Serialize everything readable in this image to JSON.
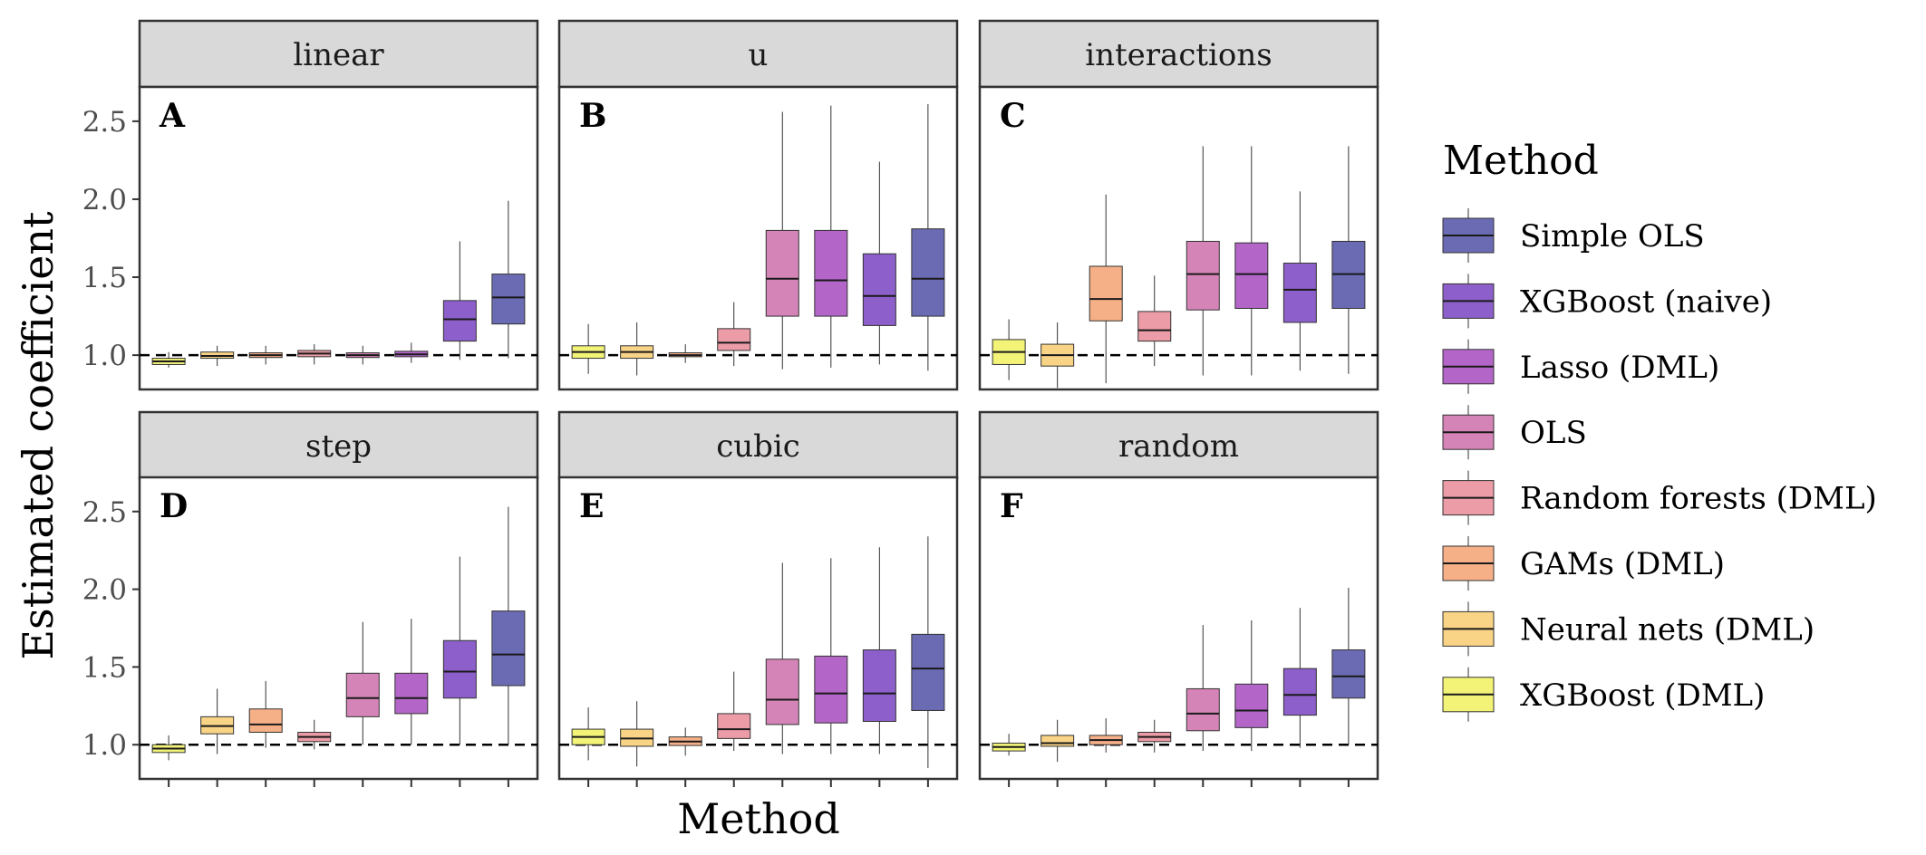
{
  "chart_data": {
    "type": "boxplot",
    "xlabel": "Method",
    "ylabel": "Estimated coefficient",
    "ylim": [
      0.78,
      2.72
    ],
    "yticks": [
      1.0,
      1.5,
      2.0,
      2.5
    ],
    "reference_line": 1.0,
    "legend": {
      "title": "Method",
      "position": "right",
      "entries": [
        {
          "name": "Simple OLS",
          "color": "#6b6bb4"
        },
        {
          "name": "XGBoost (naive)",
          "color": "#8c5fca"
        },
        {
          "name": "Lasso (DML)",
          "color": "#b366c8"
        },
        {
          "name": "OLS",
          "color": "#d584b7"
        },
        {
          "name": "Random forests (DML)",
          "color": "#ec9ca6"
        },
        {
          "name": "GAMs (DML)",
          "color": "#f6b088"
        },
        {
          "name": "Neural nets (DML)",
          "color": "#fad486"
        },
        {
          "name": "XGBoost (DML)",
          "color": "#f3f378"
        }
      ]
    },
    "x_order": [
      "XGBoost (DML)",
      "Neural nets (DML)",
      "GAMs (DML)",
      "Random forests (DML)",
      "OLS",
      "Lasso (DML)",
      "XGBoost (naive)",
      "Simple OLS"
    ],
    "panels": [
      {
        "strip": "linear",
        "letter": "A",
        "boxes": [
          {
            "method": "XGBoost (DML)",
            "min": 0.92,
            "q1": 0.94,
            "median": 0.96,
            "q3": 0.98,
            "max": 1.02
          },
          {
            "method": "Neural nets (DML)",
            "min": 0.93,
            "q1": 0.98,
            "median": 0.995,
            "q3": 1.02,
            "max": 1.06
          },
          {
            "method": "GAMs (DML)",
            "min": 0.94,
            "q1": 0.985,
            "median": 1.0,
            "q3": 1.015,
            "max": 1.06
          },
          {
            "method": "Random forests (DML)",
            "min": 0.94,
            "q1": 0.99,
            "median": 1.01,
            "q3": 1.03,
            "max": 1.07
          },
          {
            "method": "OLS",
            "min": 0.94,
            "q1": 0.985,
            "median": 1.0,
            "q3": 1.015,
            "max": 1.06
          },
          {
            "method": "Lasso (DML)",
            "min": 0.95,
            "q1": 0.99,
            "median": 1.005,
            "q3": 1.025,
            "max": 1.08
          },
          {
            "method": "XGBoost (naive)",
            "min": 0.97,
            "q1": 1.09,
            "median": 1.23,
            "q3": 1.35,
            "max": 1.73
          },
          {
            "method": "Simple OLS",
            "min": 0.98,
            "q1": 1.2,
            "median": 1.37,
            "q3": 1.52,
            "max": 1.99
          }
        ]
      },
      {
        "strip": "u",
        "letter": "B",
        "boxes": [
          {
            "method": "XGBoost (DML)",
            "min": 0.88,
            "q1": 0.98,
            "median": 1.02,
            "q3": 1.06,
            "max": 1.2
          },
          {
            "method": "Neural nets (DML)",
            "min": 0.87,
            "q1": 0.98,
            "median": 1.02,
            "q3": 1.06,
            "max": 1.21
          },
          {
            "method": "GAMs (DML)",
            "min": 0.95,
            "q1": 0.99,
            "median": 1.0,
            "q3": 1.015,
            "max": 1.07
          },
          {
            "method": "Random forests (DML)",
            "min": 0.93,
            "q1": 1.03,
            "median": 1.08,
            "q3": 1.17,
            "max": 1.34
          },
          {
            "method": "OLS",
            "min": 0.91,
            "q1": 1.25,
            "median": 1.49,
            "q3": 1.8,
            "max": 2.56
          },
          {
            "method": "Lasso (DML)",
            "min": 0.92,
            "q1": 1.25,
            "median": 1.48,
            "q3": 1.8,
            "max": 2.6
          },
          {
            "method": "XGBoost (naive)",
            "min": 0.94,
            "q1": 1.19,
            "median": 1.38,
            "q3": 1.65,
            "max": 2.24
          },
          {
            "method": "Simple OLS",
            "min": 0.9,
            "q1": 1.25,
            "median": 1.49,
            "q3": 1.81,
            "max": 2.61
          }
        ]
      },
      {
        "strip": "interactions",
        "letter": "C",
        "boxes": [
          {
            "method": "XGBoost (DML)",
            "min": 0.84,
            "q1": 0.94,
            "median": 1.02,
            "q3": 1.1,
            "max": 1.23
          },
          {
            "method": "Neural nets (DML)",
            "min": 0.79,
            "q1": 0.93,
            "median": 1.0,
            "q3": 1.07,
            "max": 1.21
          },
          {
            "method": "GAMs (DML)",
            "min": 0.82,
            "q1": 1.22,
            "median": 1.36,
            "q3": 1.57,
            "max": 2.03
          },
          {
            "method": "Random forests (DML)",
            "min": 0.93,
            "q1": 1.09,
            "median": 1.16,
            "q3": 1.28,
            "max": 1.51
          },
          {
            "method": "OLS",
            "min": 0.87,
            "q1": 1.29,
            "median": 1.52,
            "q3": 1.73,
            "max": 2.34
          },
          {
            "method": "Lasso (DML)",
            "min": 0.87,
            "q1": 1.3,
            "median": 1.52,
            "q3": 1.72,
            "max": 2.34
          },
          {
            "method": "XGBoost (naive)",
            "min": 0.9,
            "q1": 1.21,
            "median": 1.42,
            "q3": 1.59,
            "max": 2.05
          },
          {
            "method": "Simple OLS",
            "min": 0.88,
            "q1": 1.3,
            "median": 1.52,
            "q3": 1.73,
            "max": 2.34
          }
        ]
      },
      {
        "strip": "step",
        "letter": "D",
        "boxes": [
          {
            "method": "XGBoost (DML)",
            "min": 0.9,
            "q1": 0.95,
            "median": 0.975,
            "q3": 1.0,
            "max": 1.06
          },
          {
            "method": "Neural nets (DML)",
            "min": 0.94,
            "q1": 1.07,
            "median": 1.12,
            "q3": 1.18,
            "max": 1.36
          },
          {
            "method": "GAMs (DML)",
            "min": 0.98,
            "q1": 1.08,
            "median": 1.13,
            "q3": 1.23,
            "max": 1.41
          },
          {
            "method": "Random forests (DML)",
            "min": 0.97,
            "q1": 1.02,
            "median": 1.05,
            "q3": 1.08,
            "max": 1.16
          },
          {
            "method": "OLS",
            "min": 1.0,
            "q1": 1.18,
            "median": 1.3,
            "q3": 1.46,
            "max": 1.79
          },
          {
            "method": "Lasso (DML)",
            "min": 1.0,
            "q1": 1.2,
            "median": 1.3,
            "q3": 1.46,
            "max": 1.81
          },
          {
            "method": "XGBoost (naive)",
            "min": 1.0,
            "q1": 1.3,
            "median": 1.47,
            "q3": 1.67,
            "max": 2.21
          },
          {
            "method": "Simple OLS",
            "min": 1.0,
            "q1": 1.38,
            "median": 1.58,
            "q3": 1.86,
            "max": 2.53
          }
        ]
      },
      {
        "strip": "cubic",
        "letter": "E",
        "boxes": [
          {
            "method": "XGBoost (DML)",
            "min": 0.9,
            "q1": 1.0,
            "median": 1.05,
            "q3": 1.1,
            "max": 1.24
          },
          {
            "method": "Neural nets (DML)",
            "min": 0.86,
            "q1": 0.99,
            "median": 1.04,
            "q3": 1.1,
            "max": 1.28
          },
          {
            "method": "GAMs (DML)",
            "min": 0.93,
            "q1": 0.995,
            "median": 1.02,
            "q3": 1.05,
            "max": 1.11
          },
          {
            "method": "Random forests (DML)",
            "min": 0.96,
            "q1": 1.04,
            "median": 1.1,
            "q3": 1.2,
            "max": 1.47
          },
          {
            "method": "OLS",
            "min": 0.94,
            "q1": 1.13,
            "median": 1.29,
            "q3": 1.55,
            "max": 2.17
          },
          {
            "method": "Lasso (DML)",
            "min": 0.94,
            "q1": 1.14,
            "median": 1.33,
            "q3": 1.57,
            "max": 2.2
          },
          {
            "method": "XGBoost (naive)",
            "min": 0.94,
            "q1": 1.15,
            "median": 1.33,
            "q3": 1.61,
            "max": 2.27
          },
          {
            "method": "Simple OLS",
            "min": 0.85,
            "q1": 1.22,
            "median": 1.49,
            "q3": 1.71,
            "max": 2.34
          }
        ]
      },
      {
        "strip": "random",
        "letter": "F",
        "boxes": [
          {
            "method": "XGBoost (DML)",
            "min": 0.93,
            "q1": 0.96,
            "median": 0.985,
            "q3": 1.01,
            "max": 1.07
          },
          {
            "method": "Neural nets (DML)",
            "min": 0.89,
            "q1": 0.99,
            "median": 1.01,
            "q3": 1.06,
            "max": 1.16
          },
          {
            "method": "GAMs (DML)",
            "min": 0.95,
            "q1": 1.0,
            "median": 1.03,
            "q3": 1.06,
            "max": 1.17
          },
          {
            "method": "Random forests (DML)",
            "min": 0.95,
            "q1": 1.02,
            "median": 1.05,
            "q3": 1.08,
            "max": 1.16
          },
          {
            "method": "OLS",
            "min": 0.96,
            "q1": 1.09,
            "median": 1.2,
            "q3": 1.36,
            "max": 1.77
          },
          {
            "method": "Lasso (DML)",
            "min": 0.96,
            "q1": 1.11,
            "median": 1.22,
            "q3": 1.39,
            "max": 1.8
          },
          {
            "method": "XGBoost (naive)",
            "min": 0.98,
            "q1": 1.19,
            "median": 1.32,
            "q3": 1.49,
            "max": 1.88
          },
          {
            "method": "Simple OLS",
            "min": 1.0,
            "q1": 1.3,
            "median": 1.44,
            "q3": 1.61,
            "max": 2.01
          }
        ]
      }
    ]
  }
}
